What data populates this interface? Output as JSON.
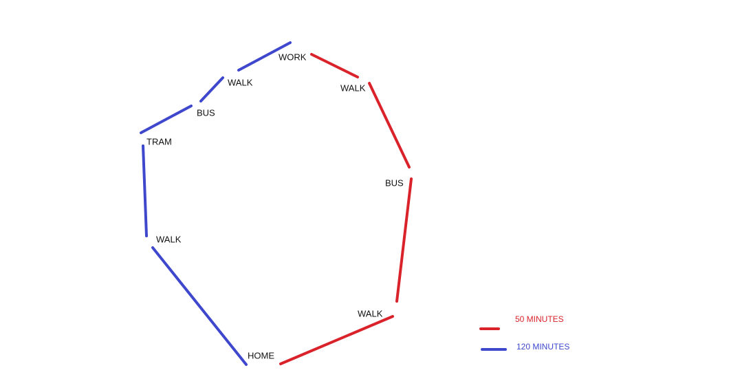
{
  "nodes": [
    {
      "label": "HOME"
    },
    {
      "label": "WALK"
    },
    {
      "label": "TRAM"
    },
    {
      "label": "BUS"
    },
    {
      "label": "WALK"
    },
    {
      "label": "WORK"
    },
    {
      "label": "WALK"
    },
    {
      "label": "BUS"
    },
    {
      "label": "WALK"
    }
  ],
  "legend": [
    {
      "label": "50 MINUTES"
    },
    {
      "label": "120 MINUTES"
    }
  ]
}
